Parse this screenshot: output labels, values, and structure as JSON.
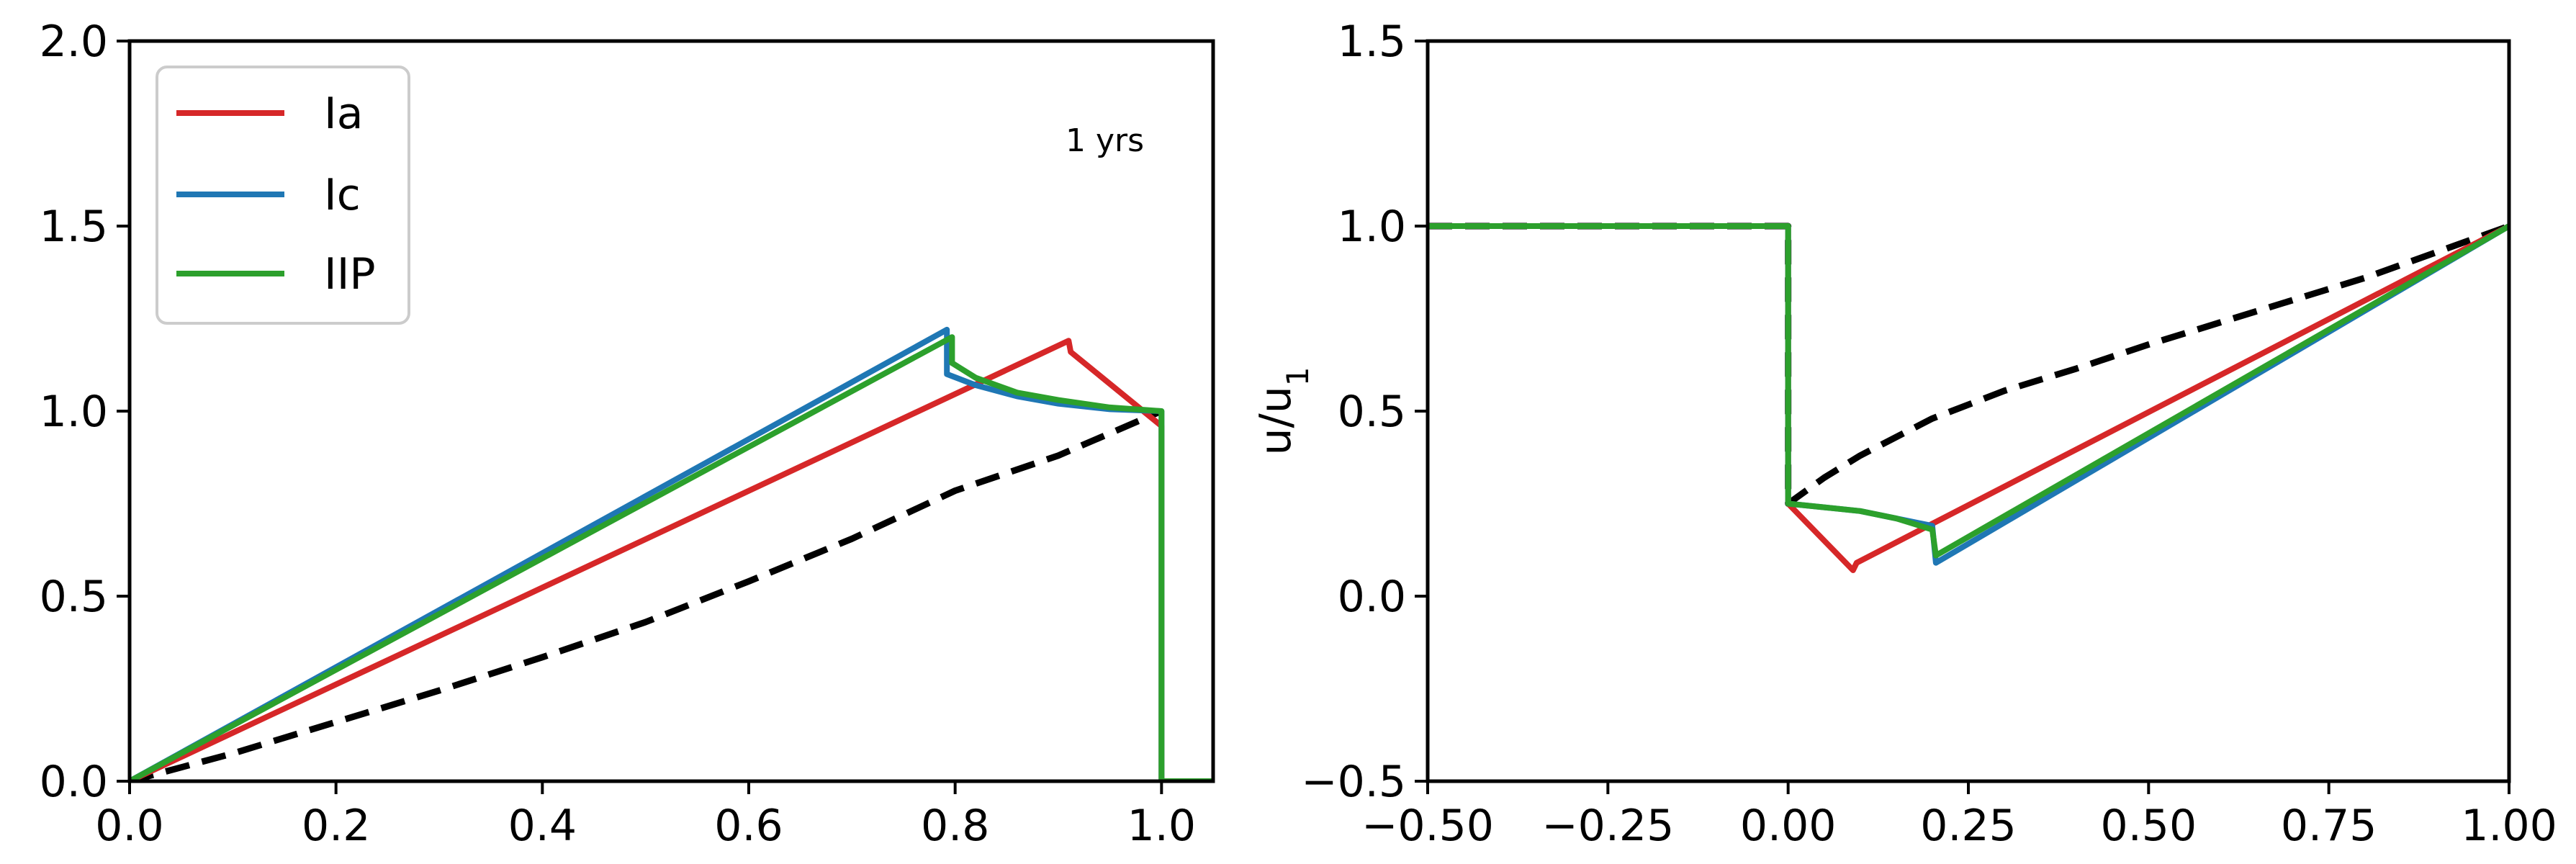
{
  "chart_data": [
    {
      "type": "line",
      "title": "",
      "xlabel": "",
      "ylabel": "",
      "xlim": [
        0,
        1.05
      ],
      "ylim": [
        0,
        2.0
      ],
      "xticks": [
        "0.0",
        "0.2",
        "0.4",
        "0.6",
        "0.8",
        "1.0"
      ],
      "yticks": [
        "0.0",
        "0.5",
        "1.0",
        "1.5",
        "2.0"
      ],
      "annotation": "1 yrs",
      "grid": false,
      "legend_position": "upper-left",
      "series": [
        {
          "name": "Ia",
          "color": "#d62728",
          "dashed": false,
          "points": [
            [
              0.0,
              0.0
            ],
            [
              0.91,
              1.19
            ],
            [
              0.912,
              1.16
            ],
            [
              1.0,
              0.96
            ],
            [
              1.0,
              0.0
            ],
            [
              1.05,
              0.0
            ]
          ]
        },
        {
          "name": "Ic",
          "color": "#1f77b4",
          "dashed": false,
          "points": [
            [
              0.0,
              0.0
            ],
            [
              0.792,
              1.22
            ],
            [
              0.792,
              1.1
            ],
            [
              0.82,
              1.07
            ],
            [
              0.86,
              1.04
            ],
            [
              0.9,
              1.02
            ],
            [
              0.95,
              1.005
            ],
            [
              1.0,
              1.0
            ],
            [
              1.0,
              0.0
            ],
            [
              1.05,
              0.0
            ]
          ]
        },
        {
          "name": "IIP",
          "color": "#2ca02c",
          "dashed": false,
          "points": [
            [
              0.0,
              0.0
            ],
            [
              0.797,
              1.2
            ],
            [
              0.797,
              1.13
            ],
            [
              0.82,
              1.09
            ],
            [
              0.86,
              1.05
            ],
            [
              0.9,
              1.03
            ],
            [
              0.95,
              1.01
            ],
            [
              1.0,
              1.0
            ],
            [
              1.0,
              0.0
            ],
            [
              1.05,
              0.0
            ]
          ]
        },
        {
          "name": "",
          "color": "#000000",
          "dashed": true,
          "points": [
            [
              0.0,
              0.0
            ],
            [
              0.1,
              0.075
            ],
            [
              0.2,
              0.16
            ],
            [
              0.3,
              0.245
            ],
            [
              0.4,
              0.335
            ],
            [
              0.5,
              0.43
            ],
            [
              0.6,
              0.54
            ],
            [
              0.7,
              0.655
            ],
            [
              0.8,
              0.785
            ],
            [
              0.9,
              0.88
            ],
            [
              1.0,
              1.0
            ]
          ]
        }
      ]
    },
    {
      "type": "line",
      "title": "",
      "xlabel": "",
      "ylabel": "u/u",
      "ylabel_subscript": "1",
      "xlim": [
        -0.5,
        1.0
      ],
      "ylim": [
        -0.5,
        1.5
      ],
      "xticks": [
        "−0.50",
        "−0.25",
        "0.00",
        "0.25",
        "0.50",
        "0.75",
        "1.00"
      ],
      "yticks": [
        "−0.5",
        "0.0",
        "0.5",
        "1.0",
        "1.5"
      ],
      "grid": false,
      "series": [
        {
          "name": "Ia",
          "color": "#d62728",
          "dashed": false,
          "points": [
            [
              -0.5,
              1.0
            ],
            [
              0.0,
              1.0
            ],
            [
              0.0,
              0.25
            ],
            [
              0.09,
              0.07
            ],
            [
              0.095,
              0.09
            ],
            [
              1.0,
              1.0
            ]
          ]
        },
        {
          "name": "Ic",
          "color": "#1f77b4",
          "dashed": false,
          "points": [
            [
              -0.5,
              1.0
            ],
            [
              0.0,
              1.0
            ],
            [
              0.0,
              0.25
            ],
            [
              0.05,
              0.24
            ],
            [
              0.1,
              0.23
            ],
            [
              0.15,
              0.21
            ],
            [
              0.2,
              0.19
            ],
            [
              0.205,
              0.09
            ],
            [
              1.0,
              1.0
            ]
          ]
        },
        {
          "name": "IIP",
          "color": "#2ca02c",
          "dashed": false,
          "points": [
            [
              -0.5,
              1.0
            ],
            [
              0.0,
              1.0
            ],
            [
              0.0,
              0.25
            ],
            [
              0.05,
              0.24
            ],
            [
              0.1,
              0.23
            ],
            [
              0.15,
              0.21
            ],
            [
              0.2,
              0.18
            ],
            [
              0.205,
              0.11
            ],
            [
              1.0,
              1.0
            ]
          ]
        },
        {
          "name": "",
          "color": "#000000",
          "dashed": true,
          "points": [
            [
              -0.5,
              1.0
            ],
            [
              0.0,
              1.0
            ],
            [
              0.0,
              0.25
            ],
            [
              0.05,
              0.32
            ],
            [
              0.1,
              0.38
            ],
            [
              0.2,
              0.48
            ],
            [
              0.3,
              0.555
            ],
            [
              0.4,
              0.615
            ],
            [
              0.5,
              0.68
            ],
            [
              0.6,
              0.74
            ],
            [
              0.7,
              0.8
            ],
            [
              0.8,
              0.86
            ],
            [
              0.9,
              0.93
            ],
            [
              1.0,
              1.0
            ]
          ]
        }
      ]
    }
  ]
}
